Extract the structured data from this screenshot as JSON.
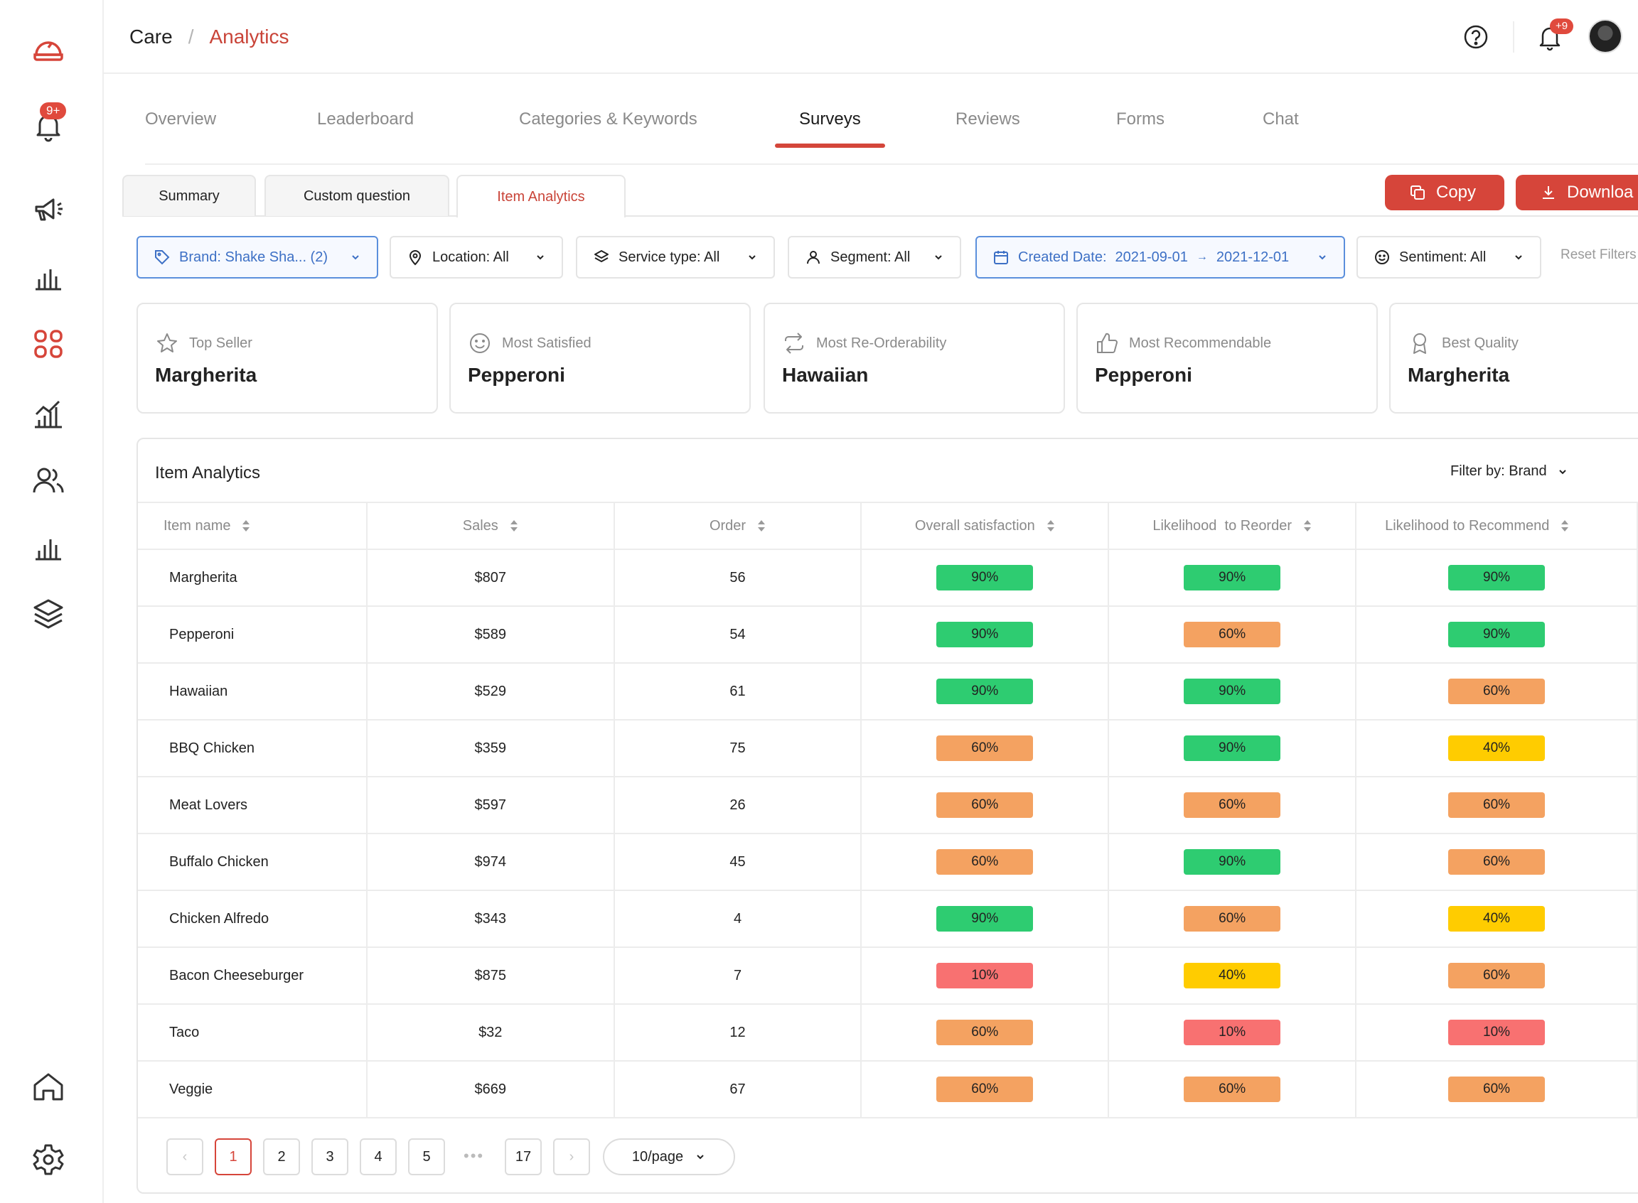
{
  "app": {
    "colors": {
      "accent": "#d6453a",
      "green": "#2ecc71",
      "orange": "#f4a261",
      "yellow": "#ffcc00",
      "red": "#f87171",
      "blue": "#3d70c5"
    }
  },
  "sidebar": {
    "notification_badge": "9+",
    "icons": [
      "logo-icon",
      "bell-icon",
      "campaign-icon",
      "bar-chart-icon",
      "grid-icon",
      "growth-chart-icon",
      "users-icon",
      "stats-icon",
      "layers-icon",
      "home-icon",
      "settings-icon"
    ]
  },
  "header": {
    "breadcrumb": {
      "root": "Care",
      "separator": "/",
      "current": "Analytics"
    },
    "notification_badge": "+9"
  },
  "tabs": [
    "Overview",
    "Leaderboard",
    "Categories & Keywords",
    "Surveys",
    "Reviews",
    "Forms",
    "Chat"
  ],
  "active_tab": "Surveys",
  "subtabs": [
    "Summary",
    "Custom question",
    "Item Analytics"
  ],
  "active_subtab": "Item Analytics",
  "actions": {
    "copy": "Copy",
    "download": "Downloa"
  },
  "filters": {
    "brand": "Brand: Shake Sha... (2)",
    "location": "Location: All",
    "service_type": "Service type: All",
    "segment": "Segment: All",
    "created_date_label": "Created Date:",
    "date_from": "2021-09-01",
    "date_to": "2021-12-01",
    "sentiment": "Sentiment: All",
    "reset": "Reset Filters"
  },
  "cards": [
    {
      "label": "Top Seller",
      "value": "Margherita",
      "icon": "star-icon"
    },
    {
      "label": "Most Satisfied",
      "value": "Pepperoni",
      "icon": "smile-icon"
    },
    {
      "label": "Most Re-Orderability",
      "value": "Hawaiian",
      "icon": "repeat-icon"
    },
    {
      "label": "Most Recommendable",
      "value": "Pepperoni",
      "icon": "thumbs-up-icon"
    },
    {
      "label": "Best Quality",
      "value": "Margherita",
      "icon": "award-icon"
    }
  ],
  "table": {
    "title": "Item Analytics",
    "filter_by": "Filter by: Brand",
    "columns": [
      "Item name",
      "Sales",
      "Order",
      "Overall satisfaction",
      "Likelihood  to Reorder",
      "Likelihood to Recommend"
    ],
    "rows": [
      {
        "name": "Margherita",
        "sales": "$807",
        "order": "56",
        "sat": "90%",
        "reorder": "90%",
        "rec": "90%"
      },
      {
        "name": "Pepperoni",
        "sales": "$589",
        "order": "54",
        "sat": "90%",
        "reorder": "60%",
        "rec": "90%"
      },
      {
        "name": "Hawaiian",
        "sales": "$529",
        "order": "61",
        "sat": "90%",
        "reorder": "90%",
        "rec": "60%"
      },
      {
        "name": "BBQ Chicken",
        "sales": "$359",
        "order": "75",
        "sat": "60%",
        "reorder": "90%",
        "rec": "40%"
      },
      {
        "name": "Meat Lovers",
        "sales": "$597",
        "order": "26",
        "sat": "60%",
        "reorder": "60%",
        "rec": "60%"
      },
      {
        "name": "Buffalo Chicken",
        "sales": "$974",
        "order": "45",
        "sat": "60%",
        "reorder": "90%",
        "rec": "60%"
      },
      {
        "name": "Chicken Alfredo",
        "sales": "$343",
        "order": "4",
        "sat": "90%",
        "reorder": "60%",
        "rec": "40%"
      },
      {
        "name": "Bacon Cheeseburger",
        "sales": "$875",
        "order": "7",
        "sat": "10%",
        "reorder": "40%",
        "rec": "60%"
      },
      {
        "name": "Taco",
        "sales": "$32",
        "order": "12",
        "sat": "60%",
        "reorder": "10%",
        "rec": "10%"
      },
      {
        "name": "Veggie",
        "sales": "$669",
        "order": "67",
        "sat": "60%",
        "reorder": "60%",
        "rec": "60%"
      }
    ]
  },
  "pagination": {
    "prev": "‹",
    "next": "›",
    "pages": [
      "1",
      "2",
      "3",
      "4",
      "5"
    ],
    "ellipsis": "•••",
    "last": "17",
    "current": "1",
    "page_size": "10/page"
  }
}
